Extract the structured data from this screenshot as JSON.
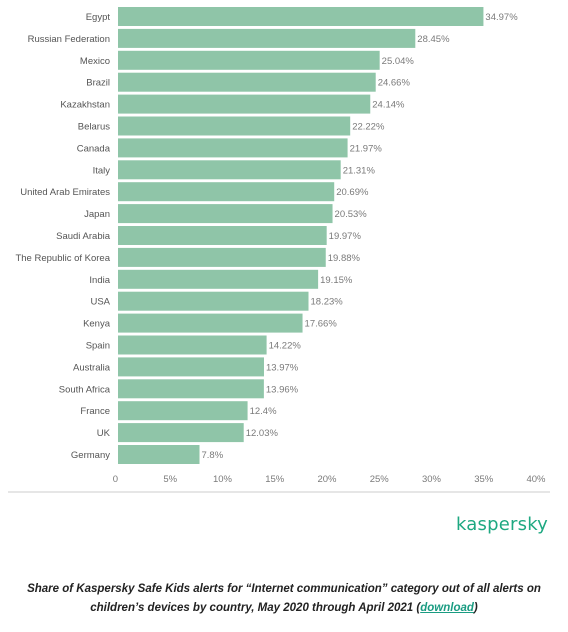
{
  "chart_data": {
    "type": "bar",
    "orientation": "horizontal",
    "categories": [
      "Egypt",
      "Russian Federation",
      "Mexico",
      "Brazil",
      "Kazakhstan",
      "Belarus",
      "Canada",
      "Italy",
      "United Arab Emirates",
      "Japan",
      "Saudi Arabia",
      "The Republic of Korea",
      "India",
      "USA",
      "Kenya",
      "Spain",
      "Australia",
      "South Africa",
      "France",
      "UK",
      "Germany"
    ],
    "values": [
      34.97,
      28.45,
      25.04,
      24.66,
      24.14,
      22.22,
      21.97,
      21.31,
      20.69,
      20.53,
      19.97,
      19.88,
      19.15,
      18.23,
      17.66,
      14.22,
      13.97,
      13.96,
      12.4,
      12.03,
      7.8
    ],
    "value_labels": [
      "34.97%",
      "28.45%",
      "25.04%",
      "24.66%",
      "24.14%",
      "22.22%",
      "21.97%",
      "21.31%",
      "20.69%",
      "20.53%",
      "19.97%",
      "19.88%",
      "19.15%",
      "18.23%",
      "17.66%",
      "14.22%",
      "13.97%",
      "13.96%",
      "12.4%",
      "12.03%",
      "7.8%"
    ],
    "x_ticks": [
      "0",
      "5%",
      "10%",
      "15%",
      "20%",
      "25%",
      "30%",
      "35%",
      "40%"
    ],
    "xlim": [
      0,
      40
    ],
    "grid": false,
    "bar_color": "#8fc5a8"
  },
  "logo_text": "kaspersky",
  "caption": {
    "text": "Share of Kaspersky Safe Kids alerts for “Internet communication” category out of all alerts on children’s devices by country, May 2020 through April 2021 (",
    "link": "download",
    "suffix": ")"
  },
  "colors": {
    "bar": "#8fc5a8",
    "logo": "#1ea881",
    "link": "#1a9c82",
    "axis": "#cccccc"
  }
}
